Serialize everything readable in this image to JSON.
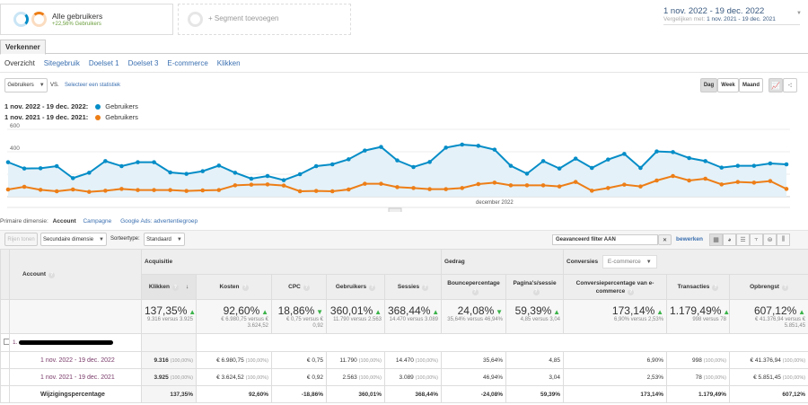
{
  "segments": {
    "primary": {
      "title": "Alle gebruikers",
      "subtitle": "+22,56% Gebruikers"
    },
    "add_label": "+ Segment toevoegen"
  },
  "date_range": {
    "main": "1 nov. 2022 - 19 dec. 2022",
    "compare_label": "Vergelijken met:",
    "compare": "1 nov. 2021 - 19 dec. 2021"
  },
  "tab": "Verkenner",
  "subnav": [
    "Overzicht",
    "Sitegebruik",
    "Doelset 1",
    "Doelset 3",
    "E-commerce",
    "Klikken"
  ],
  "metric_select": "Gebruikers",
  "vs": "VS.",
  "select_metric": "Selecteer een statistiek",
  "granularity": [
    "Dag",
    "Week",
    "Maand"
  ],
  "legend": [
    {
      "range": "1 nov. 2022 - 19 dec. 2022:",
      "metric": "Gebruikers",
      "color": "#058dc7"
    },
    {
      "range": "1 nov. 2021 - 19 dec. 2021:",
      "metric": "Gebruikers",
      "color": "#ed7e17"
    }
  ],
  "chart_data": {
    "type": "line",
    "yticks": [
      200,
      400,
      600
    ],
    "ylim": [
      0,
      600
    ],
    "xlabel_annotation": "december 2022",
    "x_start": "2022-11-01",
    "x_end": "2022-12-19",
    "series": [
      {
        "name": "Gebruikers",
        "range": "1 nov. 2022 - 19 dec. 2022",
        "color": "#058dc7",
        "values": [
          307,
          251,
          253,
          272,
          165,
          213,
          317,
          272,
          307,
          307,
          216,
          203,
          227,
          277,
          213,
          160,
          184,
          147,
          200,
          272,
          288,
          333,
          411,
          443,
          323,
          264,
          309,
          437,
          464,
          453,
          419,
          275,
          205,
          317,
          251,
          339,
          256,
          331,
          381,
          256,
          403,
          397,
          344,
          317,
          259,
          275,
          275,
          296,
          288
        ]
      },
      {
        "name": "Gebruikers",
        "range": "1 nov. 2021 - 19 dec. 2021",
        "color": "#ed7e17",
        "values": [
          64,
          88,
          61,
          48,
          64,
          43,
          53,
          69,
          59,
          59,
          59,
          51,
          56,
          59,
          101,
          107,
          109,
          99,
          48,
          51,
          48,
          64,
          115,
          115,
          85,
          77,
          67,
          67,
          77,
          112,
          125,
          101,
          101,
          101,
          91,
          131,
          53,
          77,
          107,
          91,
          144,
          184,
          144,
          160,
          109,
          131,
          125,
          139,
          69
        ]
      }
    ]
  },
  "primary_dim": {
    "label": "Primaire dimensie:",
    "active": "Account",
    "options": [
      "Campagne",
      "Google Ads: advertentiegroep"
    ]
  },
  "toolbar": {
    "show_rows": "Rijen tonen",
    "secondary": "Secundaire dimensie",
    "sort_label": "Sorteertype:",
    "sort": "Standaard",
    "filter": "Geavanceerd filter AAN",
    "edit": "bewerken"
  },
  "table": {
    "account_header": "Account",
    "groups": {
      "acq": "Acquisitie",
      "behavior": "Gedrag",
      "conv": "Conversies",
      "conv_select": "E-commerce"
    },
    "columns": [
      "Klikken",
      "Kosten",
      "CPC",
      "Gebruikers",
      "Sessies",
      "Bouncepercentage",
      "Pagina's/sessie",
      "Conversiepercentage van e-commerce",
      "Transacties",
      "Opbrengst"
    ],
    "summary": [
      {
        "pct": "137,35%",
        "detail": "9.316 versus 3.925"
      },
      {
        "pct": "92,60%",
        "detail": "€ 6.980,75 versus € 3.624,52"
      },
      {
        "pct": "18,86%",
        "detail": "€ 0,75 versus € 0,92"
      },
      {
        "pct": "360,01%",
        "detail": "11.790 versus 2.563"
      },
      {
        "pct": "368,44%",
        "detail": "14.470 versus 3.089"
      },
      {
        "pct": "24,08%",
        "detail": "35,64% versus 46,94%"
      },
      {
        "pct": "59,39%",
        "detail": "4,85 versus 3,04"
      },
      {
        "pct": "173,14%",
        "detail": "6,90% versus 2,53%"
      },
      {
        "pct": "1.179,49%",
        "detail": "998 versus 78"
      },
      {
        "pct": "607,12%",
        "detail": "€ 41.376,94 versus € 5.851,45"
      }
    ],
    "account_index": "1.",
    "rows": [
      {
        "label": "1 nov. 2022 - 19 dec. 2022",
        "cells": [
          [
            "9.316",
            "(100,00%)"
          ],
          [
            "€ 6.980,75",
            "(100,00%)"
          ],
          [
            "€ 0,75",
            ""
          ],
          [
            "11.790",
            "(100,00%)"
          ],
          [
            "14.470",
            "(100,00%)"
          ],
          [
            "35,64%",
            ""
          ],
          [
            "4,85",
            ""
          ],
          [
            "6,90%",
            ""
          ],
          [
            "998",
            "(100,00%)"
          ],
          [
            "€ 41.376,94",
            "(100,00%)"
          ]
        ]
      },
      {
        "label": "1 nov. 2021 - 19 dec. 2021",
        "cells": [
          [
            "3.925",
            "(100,00%)"
          ],
          [
            "€ 3.624,52",
            "(100,00%)"
          ],
          [
            "€ 0,92",
            ""
          ],
          [
            "2.563",
            "(100,00%)"
          ],
          [
            "3.089",
            "(100,00%)"
          ],
          [
            "46,94%",
            ""
          ],
          [
            "3,04",
            ""
          ],
          [
            "2,53%",
            ""
          ],
          [
            "78",
            "(100,00%)"
          ],
          [
            "€ 5.851,45",
            "(100,00%)"
          ]
        ]
      }
    ],
    "change": {
      "label": "Wijzigingspercentage",
      "cells": [
        "137,35%",
        "92,60%",
        "-18,86%",
        "360,01%",
        "368,44%",
        "-24,08%",
        "59,39%",
        "173,14%",
        "1.179,49%",
        "607,12%"
      ]
    }
  }
}
